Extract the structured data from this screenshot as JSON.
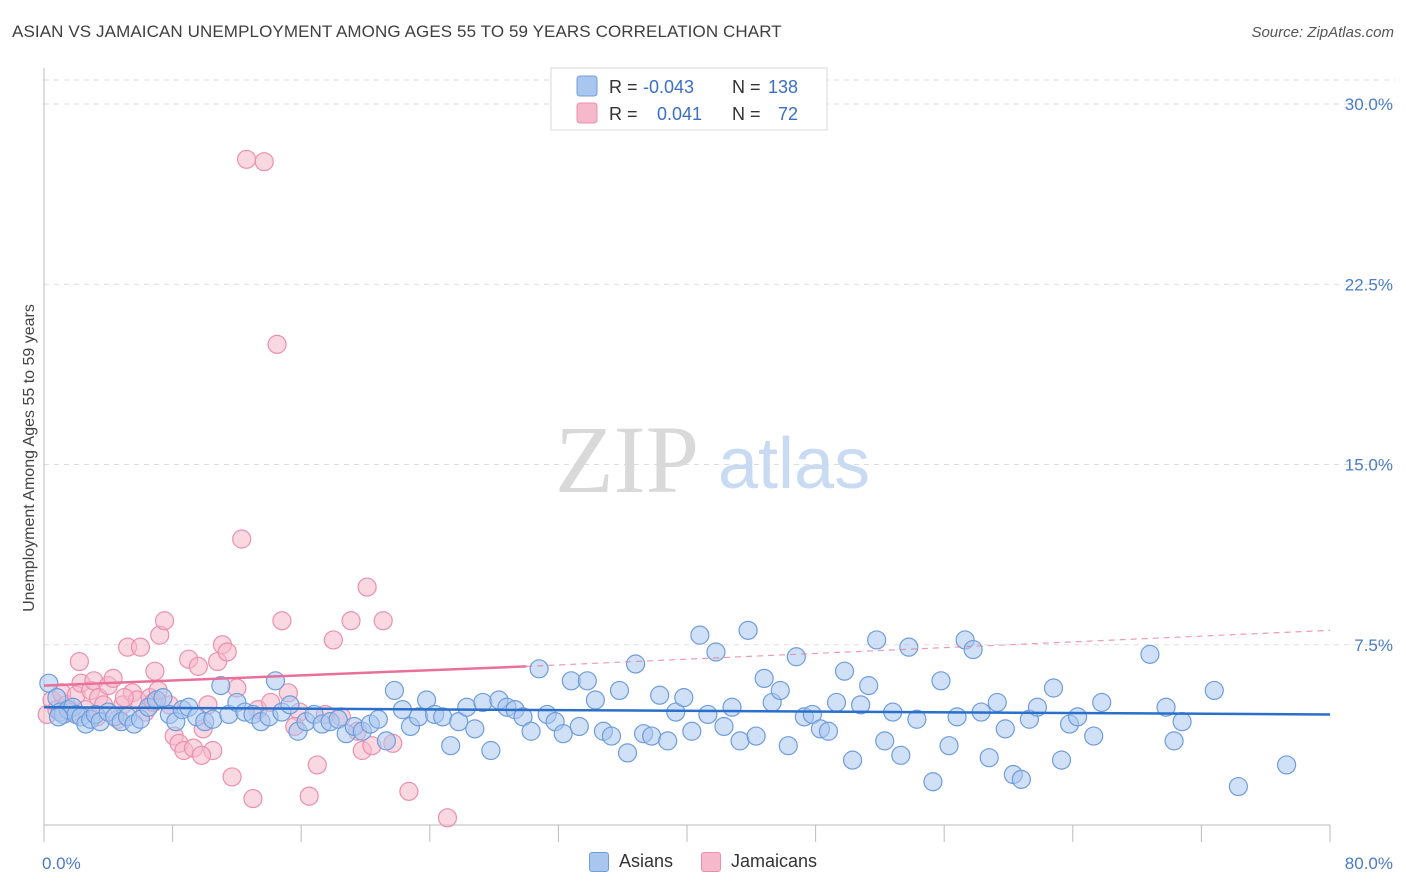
{
  "header": {
    "title": "ASIAN VS JAMAICAN UNEMPLOYMENT AMONG AGES 55 TO 59 YEARS CORRELATION CHART",
    "source": "Source: ZipAtlas.com"
  },
  "watermark": {
    "zip": "ZIP",
    "atlas": "atlas"
  },
  "legend": {
    "asians": {
      "r_label": "R =",
      "r_value": "-0.043",
      "n_label": "N =",
      "n_value": "138"
    },
    "jamaicans": {
      "r_label": "R =",
      "r_value": "0.041",
      "n_label": "N =",
      "n_value": "72"
    }
  },
  "bottom_legend": {
    "asians": "Asians",
    "jamaicans": "Jamaicans"
  },
  "colors": {
    "asian_fill": "#a9c6ef",
    "asian_stroke": "#6f9ddc",
    "asian_line": "#2a6fc9",
    "jamaican_fill": "#f6b8cb",
    "jamaican_stroke": "#ec8fae",
    "jamaican_line": "#e8709a",
    "tick_text": "#4a7bc8",
    "grid": "#dddddd"
  },
  "chart_data": {
    "type": "scatter",
    "title": "ASIAN VS JAMAICAN UNEMPLOYMENT AMONG AGES 55 TO 59 YEARS CORRELATION CHART",
    "xlabel": "",
    "ylabel": "Unemployment Among Ages 55 to 59 years",
    "xlim": [
      0,
      80
    ],
    "ylim": [
      0,
      31
    ],
    "x_tick_labels": [
      "0.0%",
      "80.0%"
    ],
    "y_ticks": [
      7.5,
      15.0,
      22.5,
      30.0
    ],
    "y_tick_labels": [
      "7.5%",
      "15.0%",
      "22.5%",
      "30.0%"
    ],
    "grid": true,
    "series": [
      {
        "name": "Asians",
        "R": -0.043,
        "N": 138,
        "trend": {
          "x": [
            0,
            80
          ],
          "y": [
            4.9,
            4.6
          ],
          "dashed_to": null
        },
        "points": [
          [
            0.3,
            5.9
          ],
          [
            0.8,
            5.3
          ],
          [
            1.0,
            4.7
          ],
          [
            1.2,
            4.6
          ],
          [
            1.5,
            4.8
          ],
          [
            1.8,
            4.9
          ],
          [
            2.0,
            4.6
          ],
          [
            2.3,
            4.5
          ],
          [
            2.6,
            4.2
          ],
          [
            2.9,
            4.4
          ],
          [
            3.2,
            4.6
          ],
          [
            3.5,
            4.3
          ],
          [
            4.0,
            4.7
          ],
          [
            4.4,
            4.5
          ],
          [
            4.8,
            4.3
          ],
          [
            5.2,
            4.5
          ],
          [
            5.6,
            4.2
          ],
          [
            6.0,
            4.4
          ],
          [
            6.5,
            4.9
          ],
          [
            7.0,
            5.2
          ],
          [
            7.4,
            5.3
          ],
          [
            7.8,
            4.6
          ],
          [
            8.2,
            4.3
          ],
          [
            8.6,
            4.8
          ],
          [
            9.0,
            4.9
          ],
          [
            9.5,
            4.5
          ],
          [
            10.0,
            4.3
          ],
          [
            10.5,
            4.4
          ],
          [
            11.0,
            5.8
          ],
          [
            11.5,
            4.6
          ],
          [
            12.0,
            5.1
          ],
          [
            12.5,
            4.7
          ],
          [
            13.0,
            4.6
          ],
          [
            13.5,
            4.3
          ],
          [
            14.0,
            4.5
          ],
          [
            14.4,
            6.0
          ],
          [
            14.8,
            4.7
          ],
          [
            15.3,
            5.0
          ],
          [
            15.8,
            3.9
          ],
          [
            16.3,
            4.3
          ],
          [
            16.8,
            4.6
          ],
          [
            17.3,
            4.2
          ],
          [
            17.8,
            4.3
          ],
          [
            18.3,
            4.4
          ],
          [
            18.8,
            3.8
          ],
          [
            19.3,
            4.1
          ],
          [
            19.8,
            3.9
          ],
          [
            20.3,
            4.2
          ],
          [
            20.8,
            4.4
          ],
          [
            21.3,
            3.5
          ],
          [
            21.8,
            5.6
          ],
          [
            22.3,
            4.8
          ],
          [
            22.8,
            4.1
          ],
          [
            23.3,
            4.5
          ],
          [
            23.8,
            5.2
          ],
          [
            24.3,
            4.6
          ],
          [
            24.8,
            4.5
          ],
          [
            25.3,
            3.3
          ],
          [
            25.8,
            4.3
          ],
          [
            26.3,
            4.9
          ],
          [
            26.8,
            4.0
          ],
          [
            27.3,
            5.1
          ],
          [
            27.8,
            3.1
          ],
          [
            28.3,
            5.2
          ],
          [
            28.8,
            4.9
          ],
          [
            29.3,
            4.8
          ],
          [
            29.8,
            4.5
          ],
          [
            30.3,
            3.9
          ],
          [
            30.8,
            6.5
          ],
          [
            31.3,
            4.6
          ],
          [
            31.8,
            4.3
          ],
          [
            32.3,
            3.8
          ],
          [
            32.8,
            6.0
          ],
          [
            33.3,
            4.1
          ],
          [
            33.8,
            6.0
          ],
          [
            34.3,
            5.2
          ],
          [
            34.8,
            3.9
          ],
          [
            35.3,
            3.7
          ],
          [
            35.8,
            5.6
          ],
          [
            36.3,
            3.0
          ],
          [
            36.8,
            6.7
          ],
          [
            37.3,
            3.8
          ],
          [
            37.8,
            3.7
          ],
          [
            38.3,
            5.4
          ],
          [
            38.8,
            3.5
          ],
          [
            39.3,
            4.7
          ],
          [
            39.8,
            5.3
          ],
          [
            40.3,
            3.9
          ],
          [
            40.8,
            7.9
          ],
          [
            41.3,
            4.6
          ],
          [
            41.8,
            7.2
          ],
          [
            42.3,
            4.1
          ],
          [
            42.8,
            4.9
          ],
          [
            43.3,
            3.5
          ],
          [
            43.8,
            8.1
          ],
          [
            44.3,
            3.7
          ],
          [
            44.8,
            6.1
          ],
          [
            45.3,
            5.1
          ],
          [
            45.8,
            5.6
          ],
          [
            46.3,
            3.3
          ],
          [
            46.8,
            7.0
          ],
          [
            47.3,
            4.5
          ],
          [
            47.8,
            4.6
          ],
          [
            48.3,
            4.0
          ],
          [
            48.8,
            3.9
          ],
          [
            49.3,
            5.1
          ],
          [
            49.8,
            6.4
          ],
          [
            50.3,
            2.7
          ],
          [
            50.8,
            5.0
          ],
          [
            51.3,
            5.8
          ],
          [
            51.8,
            7.7
          ],
          [
            52.3,
            3.5
          ],
          [
            52.8,
            4.7
          ],
          [
            53.3,
            2.9
          ],
          [
            53.8,
            7.4
          ],
          [
            54.3,
            4.4
          ],
          [
            55.3,
            1.8
          ],
          [
            55.8,
            6.0
          ],
          [
            56.3,
            3.3
          ],
          [
            56.8,
            4.5
          ],
          [
            57.3,
            7.7
          ],
          [
            57.8,
            7.3
          ],
          [
            58.3,
            4.7
          ],
          [
            58.8,
            2.8
          ],
          [
            59.3,
            5.1
          ],
          [
            59.8,
            4.0
          ],
          [
            60.3,
            2.1
          ],
          [
            60.8,
            1.9
          ],
          [
            61.3,
            4.4
          ],
          [
            61.8,
            4.9
          ],
          [
            62.8,
            5.7
          ],
          [
            63.3,
            2.7
          ],
          [
            63.8,
            4.2
          ],
          [
            64.3,
            4.5
          ],
          [
            65.3,
            3.7
          ],
          [
            65.8,
            5.1
          ],
          [
            68.8,
            7.1
          ],
          [
            69.8,
            4.9
          ],
          [
            70.3,
            3.5
          ],
          [
            70.8,
            4.3
          ],
          [
            72.8,
            5.6
          ],
          [
            74.3,
            1.6
          ],
          [
            77.3,
            2.5
          ],
          [
            0.9,
            4.5
          ]
        ]
      },
      {
        "name": "Jamaicans",
        "R": 0.041,
        "N": 72,
        "trend": {
          "x": [
            0,
            30
          ],
          "y": [
            5.8,
            6.6
          ],
          "dashed_to": [
            80,
            8.1
          ]
        },
        "points": [
          [
            0.2,
            4.6
          ],
          [
            0.5,
            5.2
          ],
          [
            0.8,
            4.8
          ],
          [
            1.1,
            5.5
          ],
          [
            1.4,
            5.0
          ],
          [
            1.7,
            4.7
          ],
          [
            2.0,
            5.4
          ],
          [
            2.3,
            5.9
          ],
          [
            2.6,
            4.8
          ],
          [
            2.9,
            5.6
          ],
          [
            3.1,
            6.0
          ],
          [
            3.4,
            5.3
          ],
          [
            3.7,
            5.0
          ],
          [
            4.0,
            5.8
          ],
          [
            4.3,
            6.1
          ],
          [
            4.6,
            4.4
          ],
          [
            4.9,
            5.0
          ],
          [
            5.2,
            7.4
          ],
          [
            5.5,
            5.5
          ],
          [
            5.8,
            5.2
          ],
          [
            6.0,
            7.4
          ],
          [
            6.3,
            4.7
          ],
          [
            6.6,
            5.3
          ],
          [
            6.9,
            6.4
          ],
          [
            7.2,
            7.9
          ],
          [
            7.5,
            8.5
          ],
          [
            7.8,
            5.0
          ],
          [
            8.1,
            3.7
          ],
          [
            8.4,
            3.4
          ],
          [
            8.7,
            3.1
          ],
          [
            9.0,
            6.9
          ],
          [
            9.3,
            3.2
          ],
          [
            9.6,
            6.6
          ],
          [
            9.9,
            4.0
          ],
          [
            10.2,
            5.0
          ],
          [
            10.5,
            3.1
          ],
          [
            10.8,
            6.8
          ],
          [
            11.1,
            7.5
          ],
          [
            11.4,
            7.2
          ],
          [
            11.7,
            2.0
          ],
          [
            12.0,
            5.7
          ],
          [
            12.3,
            11.9
          ],
          [
            12.6,
            27.7
          ],
          [
            13.0,
            1.1
          ],
          [
            13.3,
            4.8
          ],
          [
            13.7,
            27.6
          ],
          [
            14.1,
            5.1
          ],
          [
            14.5,
            20.0
          ],
          [
            14.8,
            8.5
          ],
          [
            15.2,
            5.5
          ],
          [
            15.9,
            4.7
          ],
          [
            16.5,
            1.2
          ],
          [
            17.0,
            2.5
          ],
          [
            17.5,
            4.6
          ],
          [
            18.0,
            7.7
          ],
          [
            18.5,
            4.5
          ],
          [
            19.1,
            8.5
          ],
          [
            19.5,
            3.9
          ],
          [
            19.8,
            3.1
          ],
          [
            20.1,
            9.9
          ],
          [
            20.4,
            3.3
          ],
          [
            21.1,
            8.5
          ],
          [
            21.7,
            3.4
          ],
          [
            22.7,
            1.4
          ],
          [
            25.1,
            0.3
          ],
          [
            2.2,
            6.8
          ],
          [
            3.3,
            4.5
          ],
          [
            5.0,
            5.3
          ],
          [
            6.8,
            5.1
          ],
          [
            7.1,
            5.6
          ],
          [
            9.8,
            2.9
          ],
          [
            15.6,
            4.1
          ]
        ]
      }
    ]
  }
}
